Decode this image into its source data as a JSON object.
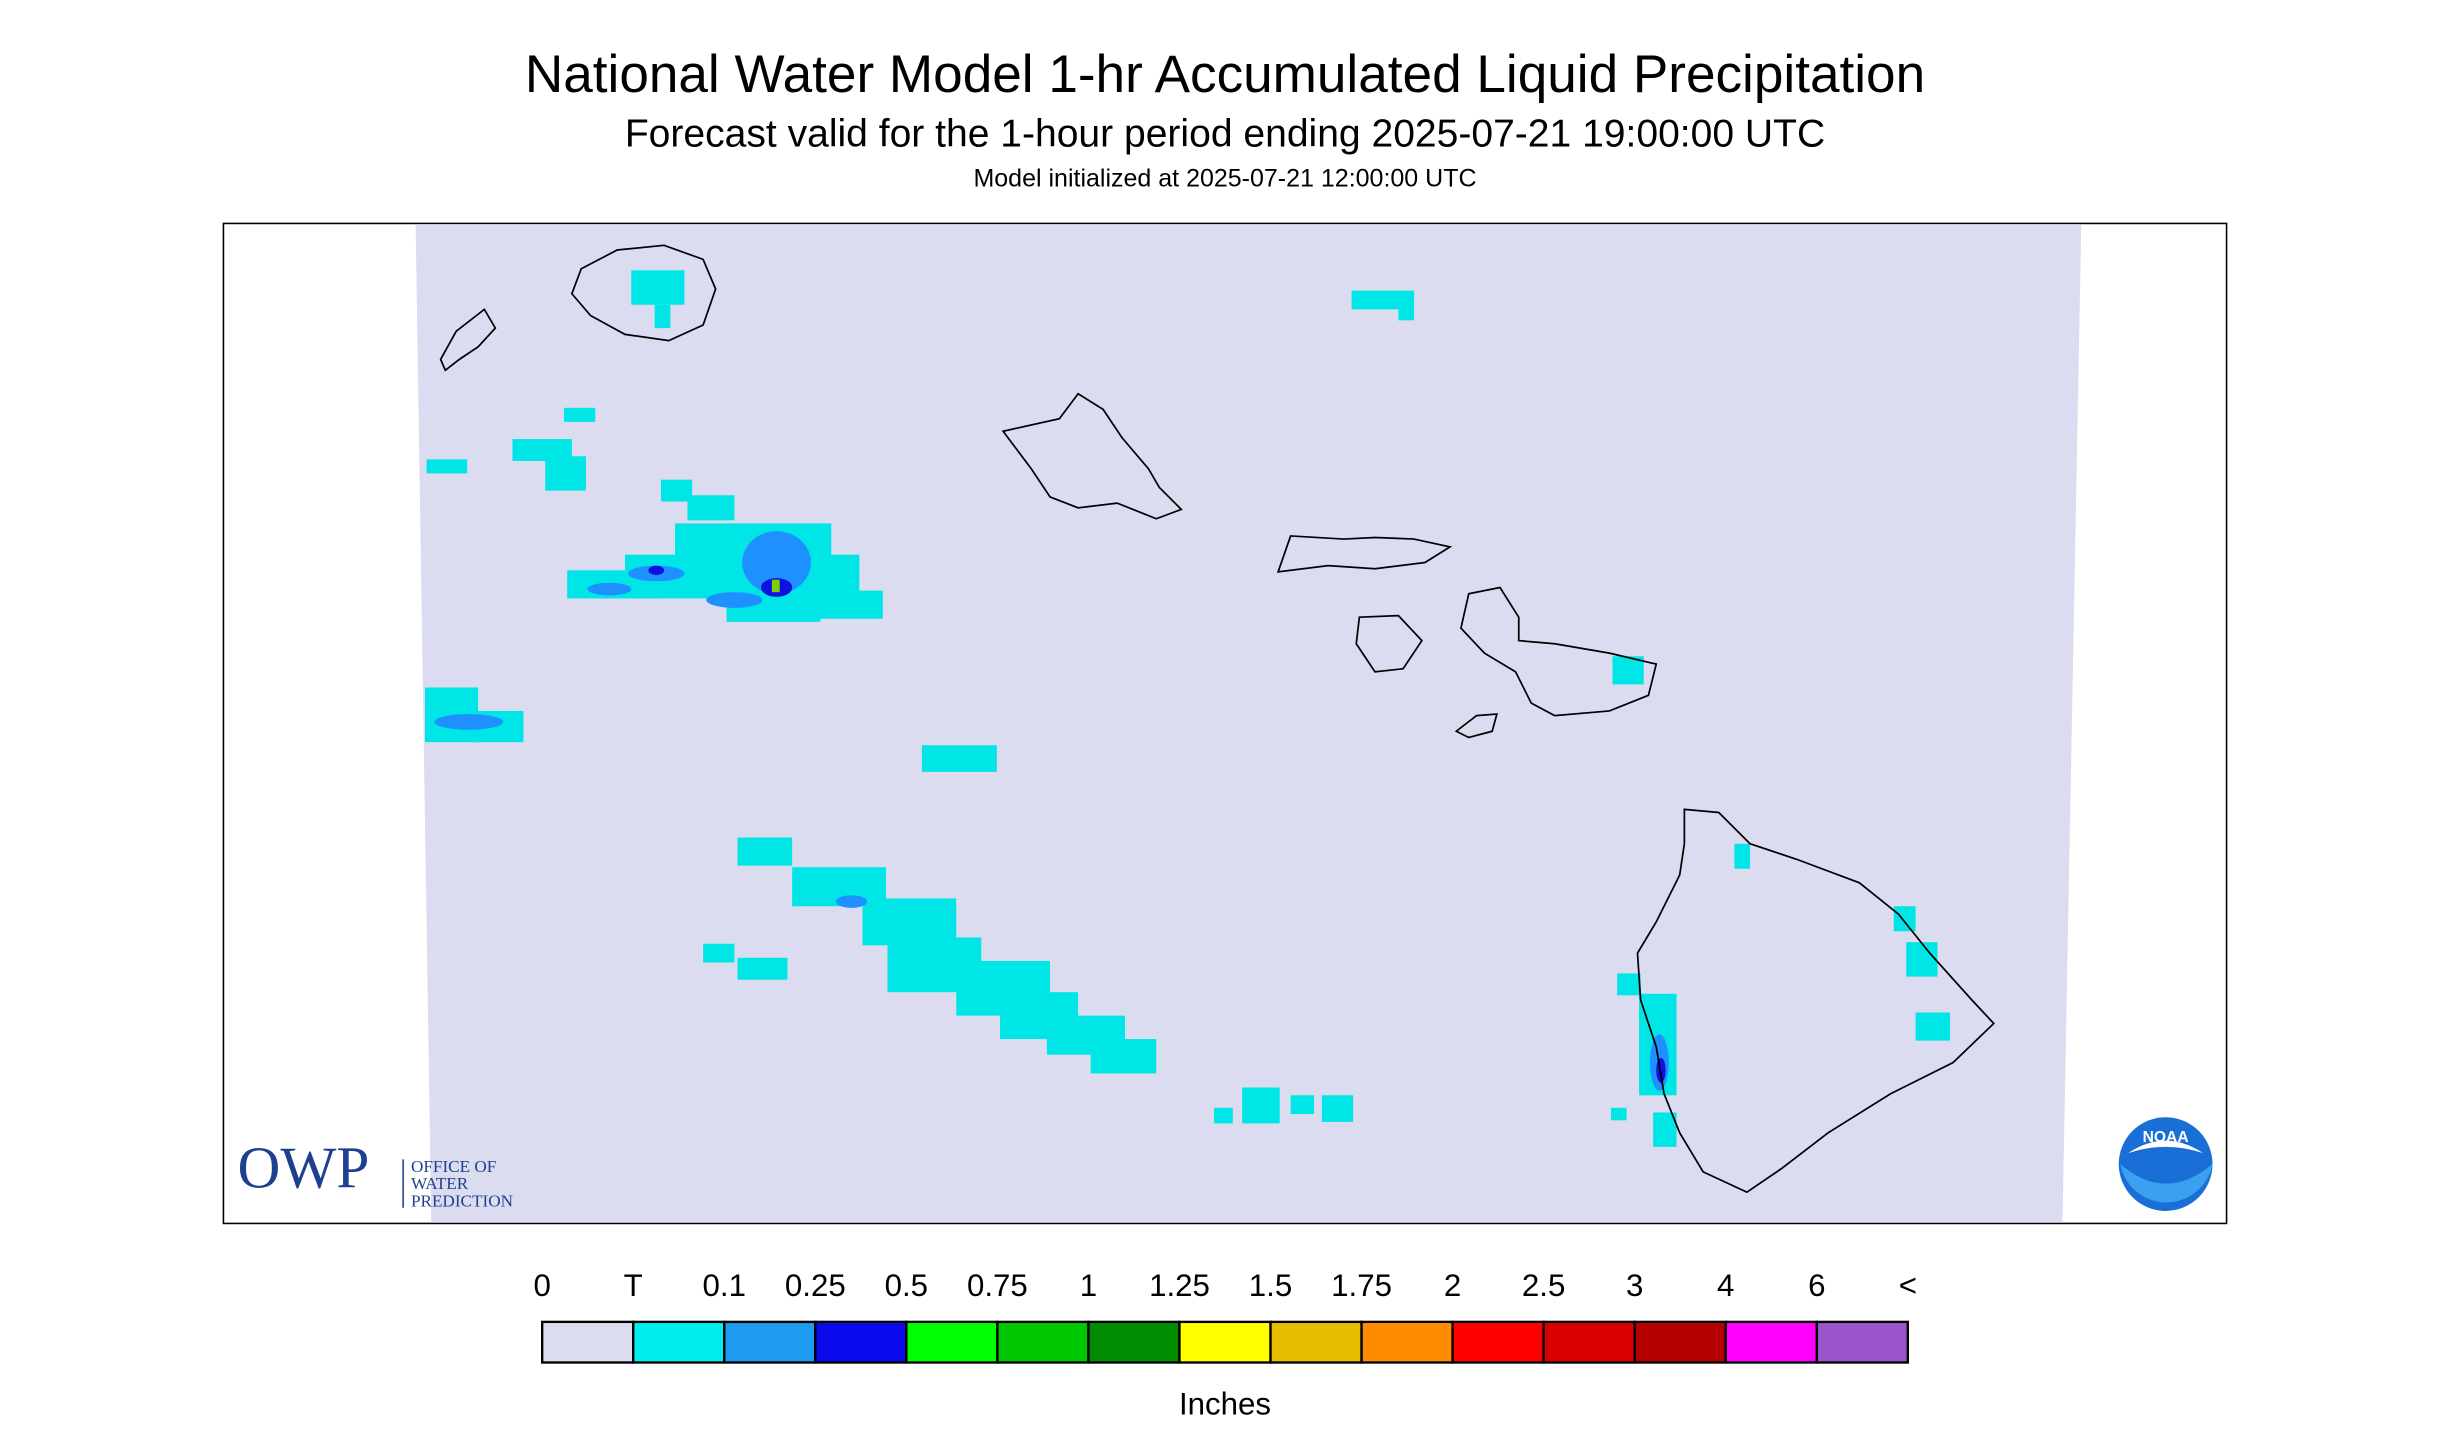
{
  "header": {
    "title": "National Water Model 1-hr Accumulated Liquid Precipitation",
    "subtitle": "Forecast valid for the 1-hour period ending 2025-07-21 19:00:00 UTC",
    "init": "Model initialized at 2025-07-21 12:00:00 UTC"
  },
  "logo": {
    "acronym": "OWP",
    "lines": [
      "OFFICE OF",
      "WATER",
      "PREDICTION"
    ],
    "noaa": "NOAA"
  },
  "legend": {
    "labels": [
      "0",
      "T",
      "0.1",
      "0.25",
      "0.5",
      "0.75",
      "1",
      "1.25",
      "1.5",
      "1.75",
      "2",
      "2.5",
      "3",
      "4",
      "6",
      "<"
    ],
    "colors": [
      "#dcdcf0",
      "#00eeee",
      "#1e9bf0",
      "#0a0aec",
      "#00ff00",
      "#00c800",
      "#008c00",
      "#ffff00",
      "#e6be00",
      "#ff8c00",
      "#ff0000",
      "#d80000",
      "#b40000",
      "#ff00ff",
      "#9955c9"
    ],
    "unit": "Inches"
  }
}
